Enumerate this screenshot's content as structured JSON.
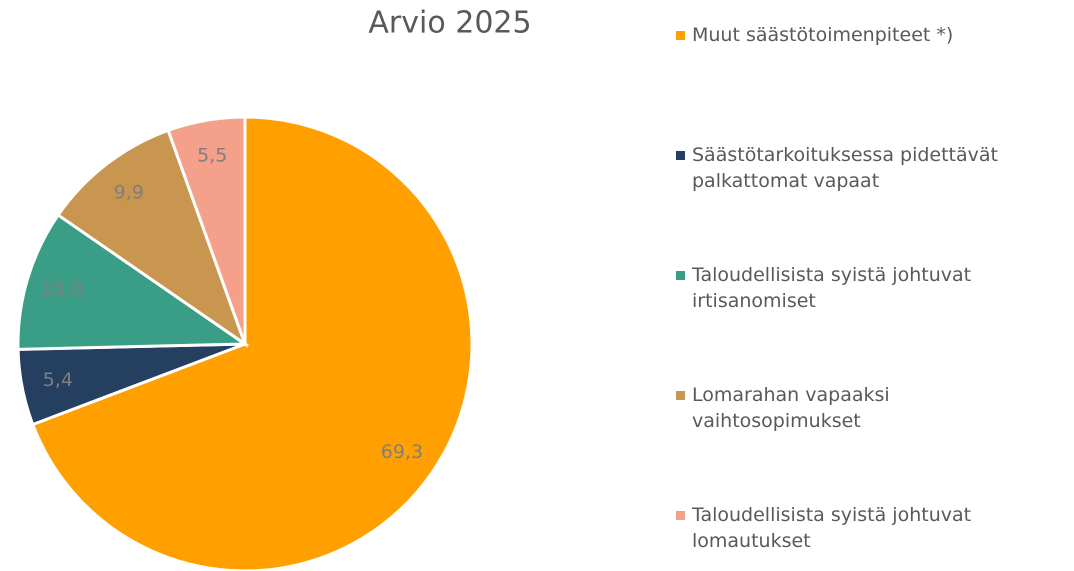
{
  "chart_data": {
    "type": "pie",
    "title": "Arvio 2025",
    "categories": [
      "Muut säästötoimenpiteet *)",
      "Säästötarkoituksessa pidettävät palkattomat vapaat",
      "Taloudellisista syistä johtuvat irtisanomiset",
      "Lomarahan vapaaksi vaihtosopimukset",
      "Taloudellisista syistä johtuvat lomautukset"
    ],
    "values": [
      69.3,
      5.4,
      10.0,
      9.9,
      5.5
    ],
    "value_labels": [
      "69,3",
      "5,4",
      "10,0",
      "9,9",
      "5,5"
    ],
    "colors": [
      "#FFA000",
      "#243F60",
      "#3A9E86",
      "#C9964F",
      "#F4A08A"
    ],
    "legend": "right"
  }
}
